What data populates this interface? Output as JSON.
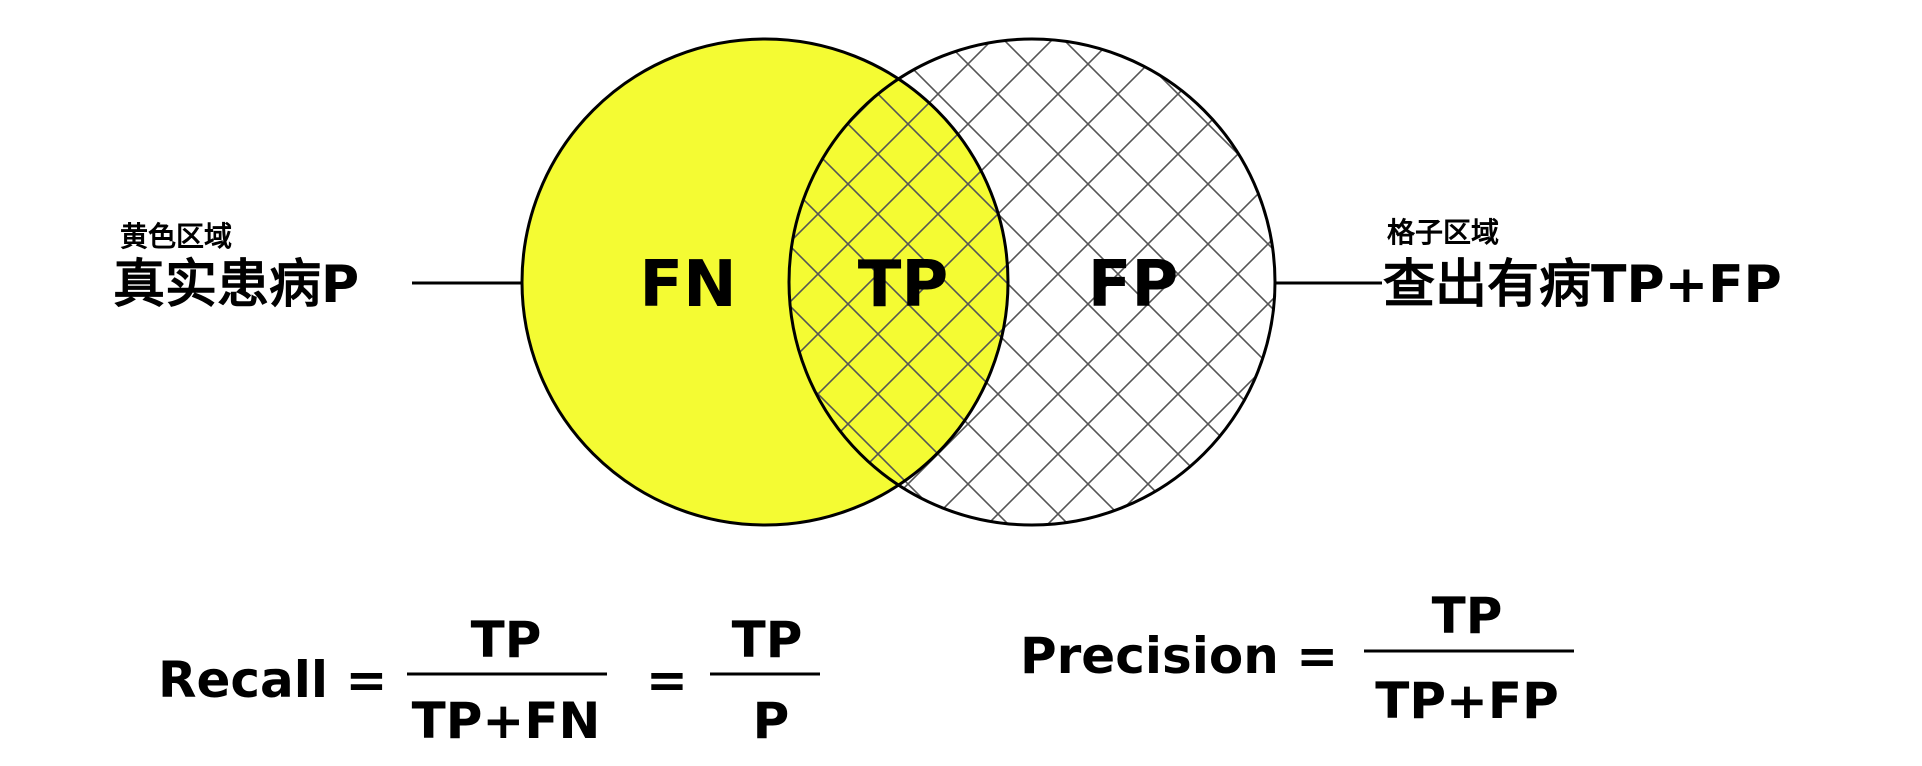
{
  "colors": {
    "yellow": "#f4fb33",
    "line": "#000000",
    "hatch": "#555555",
    "background": "#ffffff"
  },
  "venn": {
    "left_region": "FN",
    "overlap_region": "TP",
    "right_region": "FP"
  },
  "left_label": {
    "caption": "黄色区域",
    "text": "真实患病P"
  },
  "right_label": {
    "caption": "格子区域",
    "text": "查出有病TP+FP"
  },
  "recall": {
    "name": "Recall =",
    "numerator_1": "TP",
    "denominator_1": "TP+FN",
    "equals": "=",
    "numerator_2": "TP",
    "denominator_2": "P"
  },
  "precision": {
    "name": "Precision =",
    "numerator": "TP",
    "denominator": "TP+FP"
  }
}
